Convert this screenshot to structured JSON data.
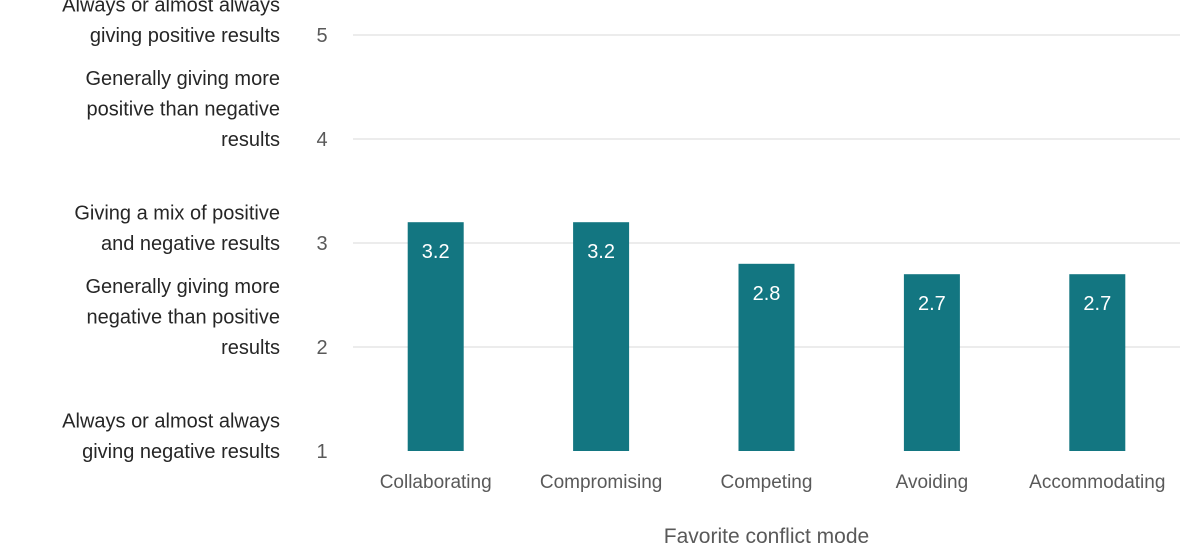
{
  "chart_data": {
    "type": "bar",
    "categories": [
      "Collaborating",
      "Compromising",
      "Competing",
      "Avoiding",
      "Accommodating"
    ],
    "values": [
      3.2,
      3.2,
      2.8,
      2.7,
      2.7
    ],
    "data_labels": [
      "3.2",
      "3.2",
      "2.8",
      "2.7",
      "2.7"
    ],
    "xlabel": "Favorite conflict mode",
    "ylim": [
      1,
      5
    ],
    "y_ticks": [
      "1",
      "2",
      "3",
      "4",
      "5"
    ],
    "y_tick_descriptions": [
      [
        "Always or almost always",
        "giving negative results"
      ],
      [
        "Generally giving more",
        "negative than positive",
        "results"
      ],
      [
        "Giving a mix of positive",
        "and negative results"
      ],
      [
        "Generally giving more",
        "positive than negative",
        "results"
      ],
      [
        "Always or almost always",
        "giving positive results"
      ]
    ],
    "grid": true,
    "bar_color": "#137681"
  }
}
